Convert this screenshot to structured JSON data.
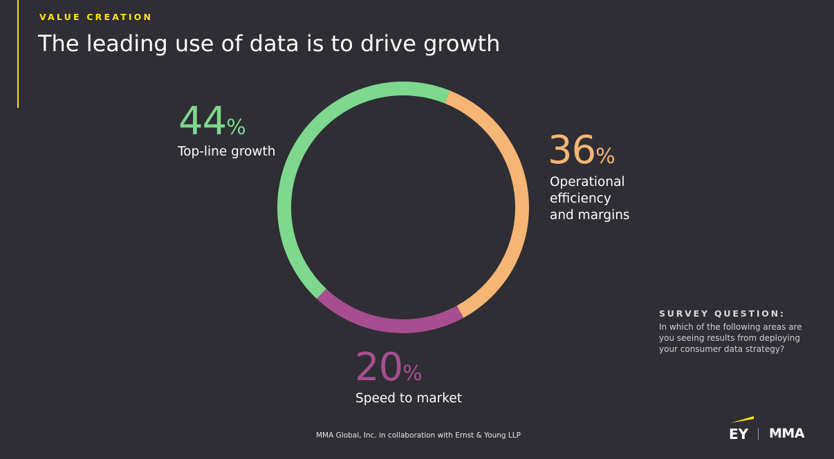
{
  "header": {
    "kicker": "VALUE CREATION",
    "title": "The leading use of data is to drive growth"
  },
  "chart_data": {
    "type": "pie",
    "variant": "donut",
    "categories": [
      "Top-line growth",
      "Operational efficiency and margins",
      "Speed to market"
    ],
    "values": [
      44,
      36,
      20
    ],
    "unit": "%",
    "colors": [
      "#7ed88e",
      "#f5b574",
      "#a84e90"
    ]
  },
  "labels": {
    "growth_value": "44",
    "growth_line1": "Top-line growth",
    "ops_value": "36",
    "ops_line1": "Operational",
    "ops_line2": "efficiency",
    "ops_line3": "and margins",
    "speed_value": "20",
    "speed_line1": "Speed to market",
    "percent_sign": "%"
  },
  "survey": {
    "heading": "SURVEY QUESTION:",
    "line1": "In which of the following areas are",
    "line2": "you seeing results from deploying",
    "line3": "your consumer data strategy?"
  },
  "footer": {
    "credit": "MMA Global, Inc. in collaboration with Ernst & Young LLP"
  },
  "logos": {
    "ey": "EY",
    "mma": "MMA",
    "accent_color": "#ffe600"
  }
}
